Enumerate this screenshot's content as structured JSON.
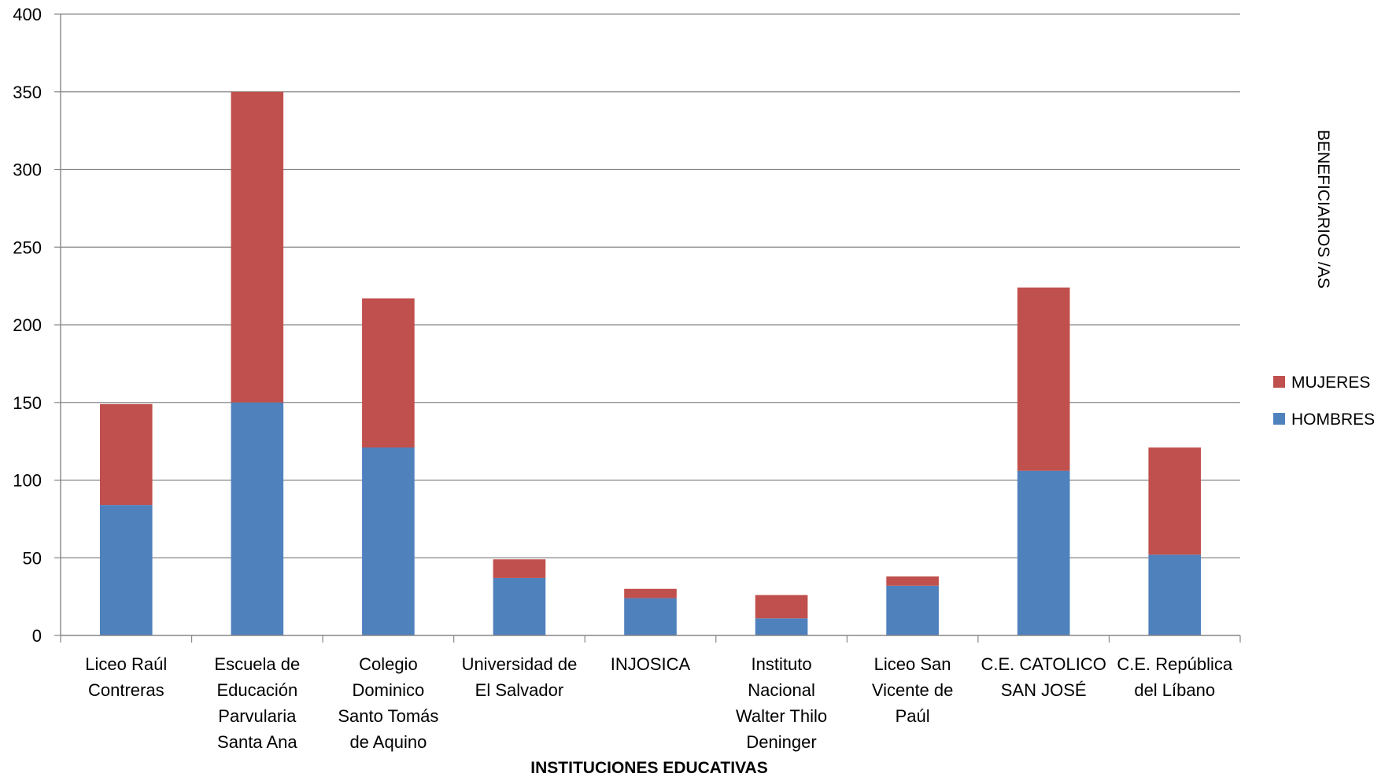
{
  "chart_data": {
    "type": "bar",
    "stacked": true,
    "title": "",
    "xlabel": "INSTITUCIONES EDUCATIVAS",
    "ylabel": "BENEFICIARIOS /AS",
    "ylim": [
      0,
      400
    ],
    "yticks": [
      0,
      50,
      100,
      150,
      200,
      250,
      300,
      350,
      400
    ],
    "grid": true,
    "legend_position": "right",
    "categories": [
      [
        "Liceo Raúl",
        "Contreras"
      ],
      [
        "Escuela de",
        "Educación",
        "Parvularia",
        "Santa Ana"
      ],
      [
        "Colegio",
        "Dominico",
        "Santo Tomás",
        "de Aquino"
      ],
      [
        "Universidad de",
        "El Salvador"
      ],
      [
        "INJOSICA"
      ],
      [
        "Instituto",
        "Nacional",
        "Walter Thilo",
        "Deninger"
      ],
      [
        "Liceo San",
        "Vicente de",
        "Paúl"
      ],
      [
        "C.E. CATOLICO",
        "SAN JOSÉ"
      ],
      [
        "C.E. República",
        "del Líbano"
      ]
    ],
    "series": [
      {
        "name": "HOMBRES",
        "color": "#4F81BD",
        "values": [
          84,
          150,
          121,
          37,
          24,
          11,
          32,
          106,
          52
        ]
      },
      {
        "name": "MUJERES",
        "color": "#C0504D",
        "values": [
          65,
          200,
          96,
          12,
          6,
          15,
          6,
          118,
          69
        ]
      }
    ]
  }
}
